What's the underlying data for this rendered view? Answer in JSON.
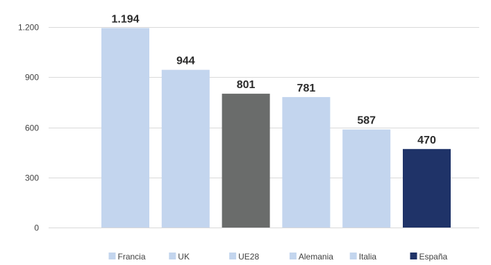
{
  "chart_data": {
    "type": "bar",
    "categories": [
      "Francia",
      "UK",
      "UE28",
      "Alemania",
      "Italia",
      "España"
    ],
    "values": [
      1194,
      944,
      801,
      781,
      587,
      470
    ],
    "value_labels": [
      "1.194",
      "944",
      "801",
      "781",
      "587",
      "470"
    ],
    "ylim": [
      0,
      1200
    ],
    "yticks": [
      0,
      300,
      600,
      900,
      1200
    ],
    "ytick_labels": [
      "0",
      "300",
      "600",
      "900",
      "1.200"
    ],
    "grid": true,
    "legend_position": "bottom",
    "colors": [
      "#c3d5ee",
      "#c3d5ee",
      "#6a6c6b",
      "#c3d5ee",
      "#c3d5ee",
      "#1f3368"
    ],
    "legend_colors": [
      "#c3d5ee",
      "#c3d5ee",
      "#c3d5ee",
      "#c3d5ee",
      "#c3d5ee",
      "#1f3368"
    ],
    "gridline_color": "#d9d9d9",
    "title": "",
    "xlabel": "",
    "ylabel": ""
  }
}
